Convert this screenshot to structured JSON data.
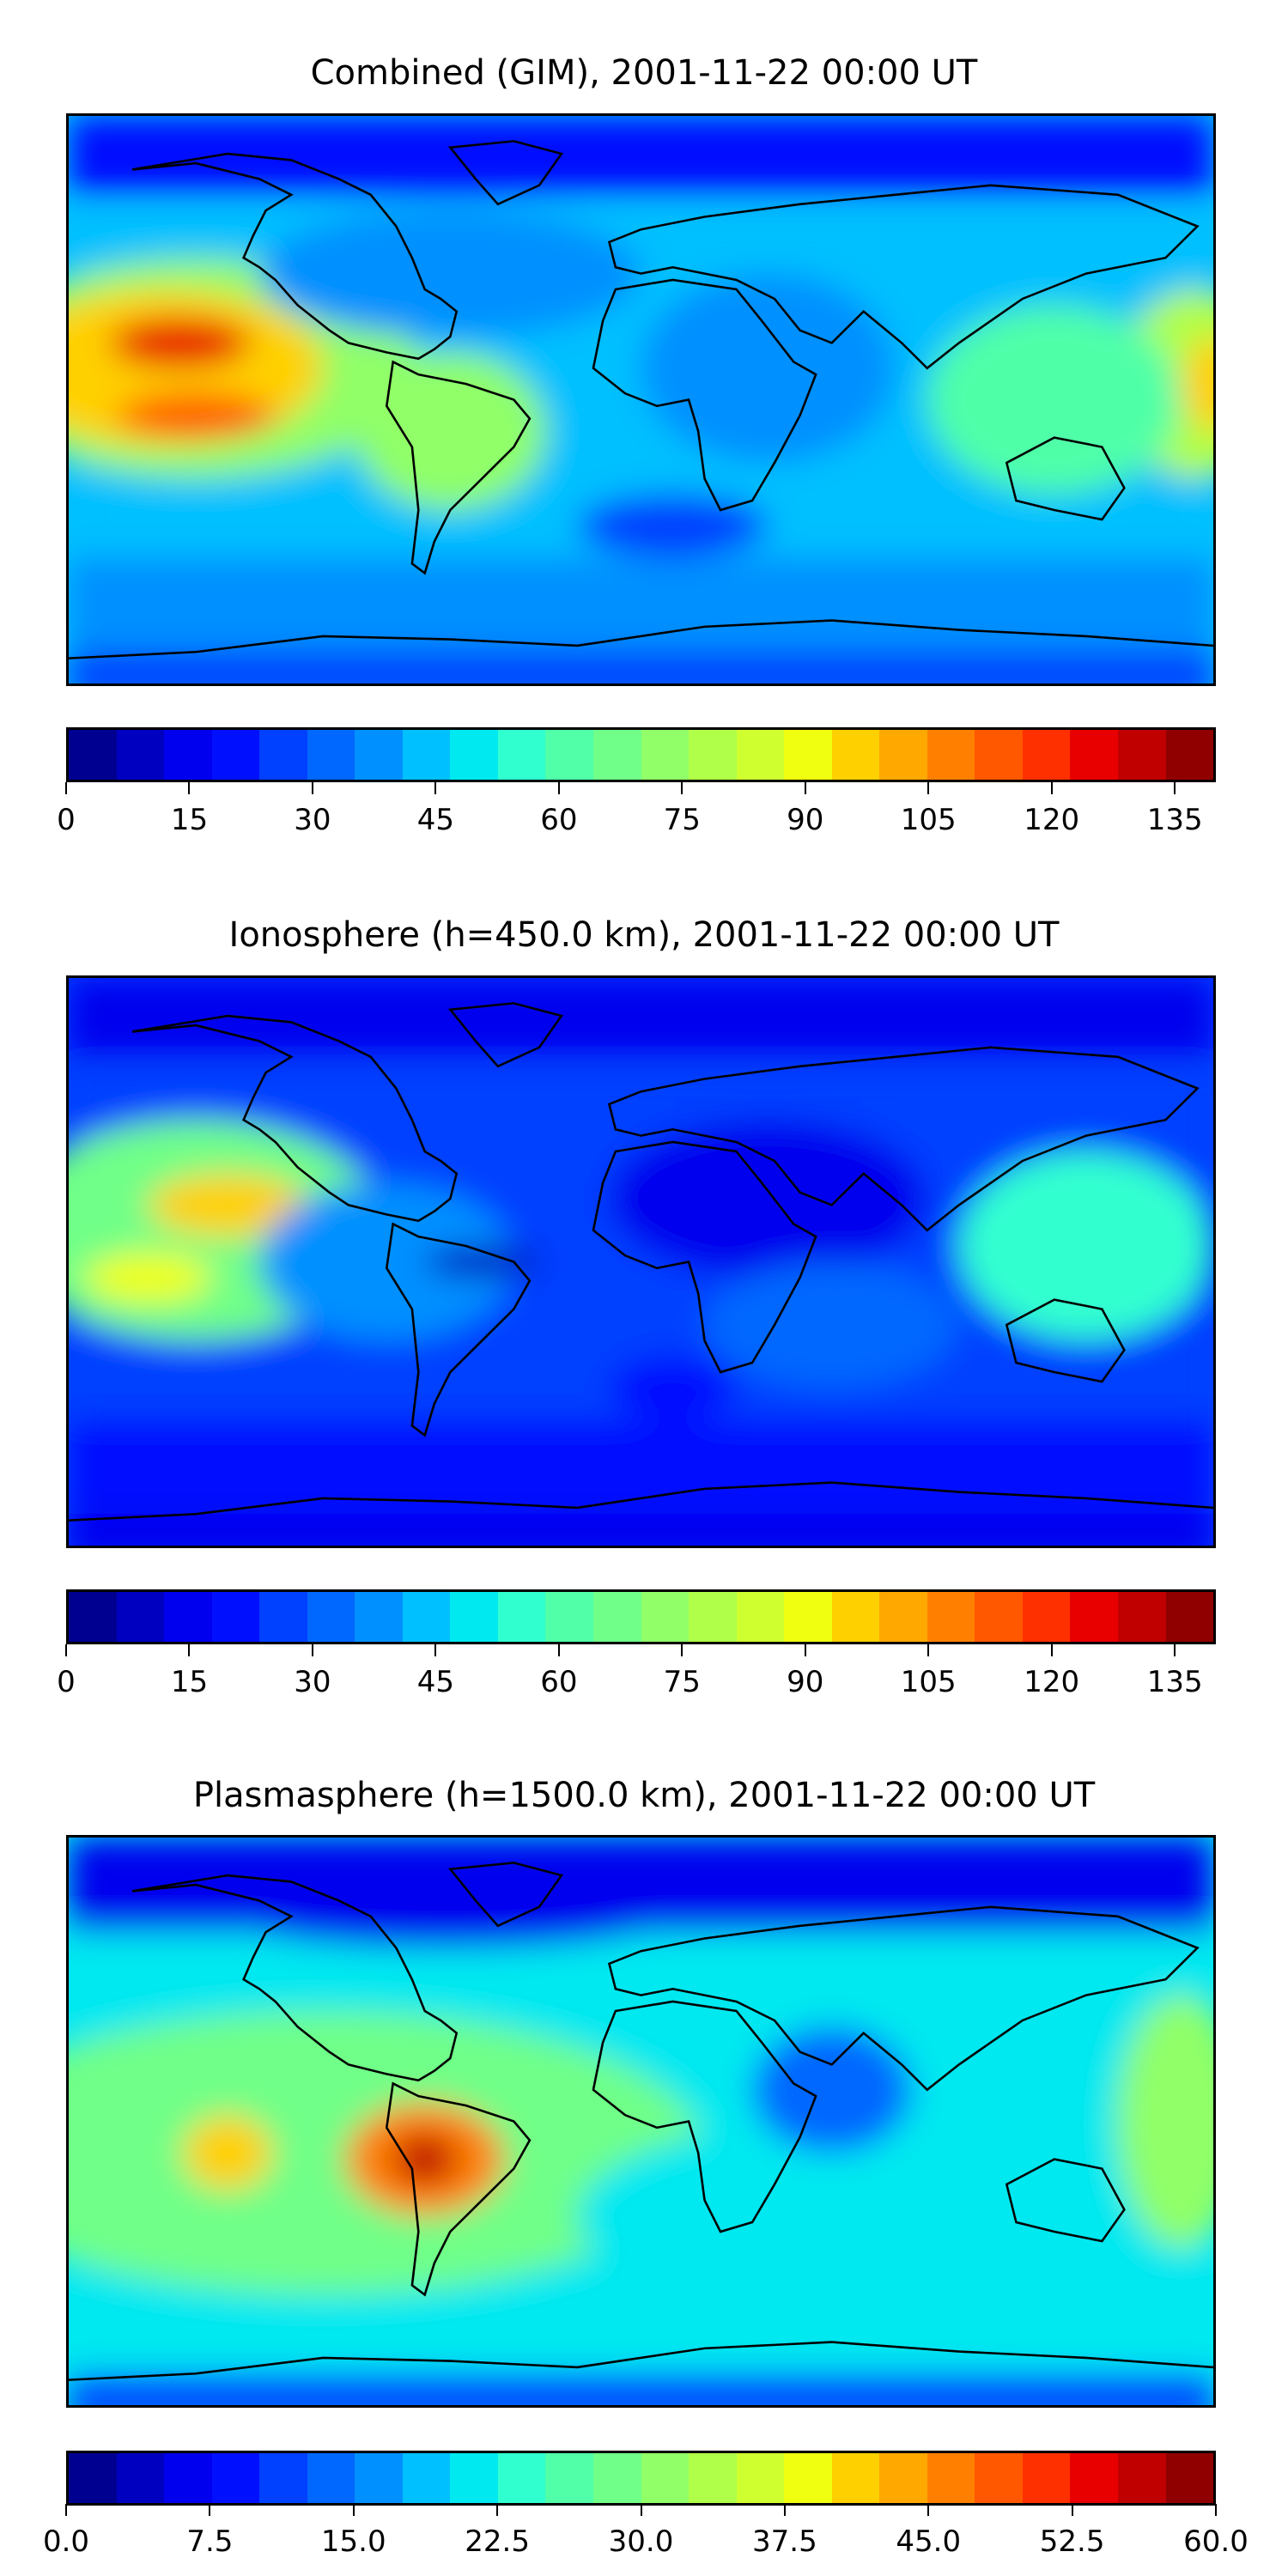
{
  "colors": [
    "#000090",
    "#0000c0",
    "#0000ee",
    "#0010ff",
    "#0040ff",
    "#0068ff",
    "#0090ff",
    "#00c0ff",
    "#00e8f0",
    "#30ffd0",
    "#50ffa8",
    "#70ff88",
    "#90ff68",
    "#b0ff48",
    "#d0ff30",
    "#f0ff10",
    "#ffd000",
    "#ffa800",
    "#ff8000",
    "#ff5800",
    "#ff3000",
    "#e80000",
    "#c00000",
    "#900000"
  ],
  "chart_data": [
    {
      "type": "heatmap",
      "title": "Combined (GIM), 2001-11-22 00:00 UT",
      "colorbar": {
        "range": [
          0,
          140
        ],
        "levels": 24,
        "ticks": [
          "0",
          "15",
          "30",
          "45",
          "60",
          "75",
          "90",
          "105",
          "120",
          "135"
        ],
        "tick_values": [
          0,
          15,
          30,
          45,
          60,
          75,
          90,
          105,
          120,
          135
        ]
      },
      "features": [
        {
          "name": "peak",
          "lon": -145,
          "lat": 18,
          "value": 125
        },
        {
          "name": "peak",
          "lon": -140,
          "lat": -5,
          "value": 115
        },
        {
          "name": "high",
          "lon": 175,
          "lat": 5,
          "value": 95
        },
        {
          "name": "low",
          "lon": 10,
          "lat": -40,
          "value": 20
        }
      ]
    },
    {
      "type": "heatmap",
      "title": "Ionosphere  (h=450.0 km), 2001-11-22 00:00 UT",
      "colorbar": {
        "range": [
          0,
          140
        ],
        "levels": 24,
        "ticks": [
          "0",
          "15",
          "30",
          "45",
          "60",
          "75",
          "90",
          "105",
          "120",
          "135"
        ],
        "tick_values": [
          0,
          15,
          30,
          45,
          60,
          75,
          90,
          105,
          120,
          135
        ]
      },
      "features": [
        {
          "name": "peak",
          "lon": -130,
          "lat": 18,
          "value": 100
        },
        {
          "name": "high",
          "lon": -155,
          "lat": -5,
          "value": 90
        },
        {
          "name": "low",
          "lon": 40,
          "lat": 20,
          "value": 8
        },
        {
          "name": "low",
          "lon": -50,
          "lat": 0,
          "value": 10
        }
      ]
    },
    {
      "type": "heatmap",
      "title": "Plasmasphere (h=1500.0 km), 2001-11-22 00:00 UT",
      "colorbar": {
        "range": [
          0,
          60
        ],
        "levels": 24,
        "ticks": [
          "0.0",
          "7.5",
          "15.0",
          "22.5",
          "30.0",
          "37.5",
          "45.0",
          "52.5",
          "60.0"
        ],
        "tick_values": [
          0,
          7.5,
          15,
          22.5,
          30,
          37.5,
          45,
          52.5,
          60
        ]
      },
      "features": [
        {
          "name": "peak",
          "lon": -68,
          "lat": -12,
          "value": 55
        },
        {
          "name": "high",
          "lon": -130,
          "lat": -10,
          "value": 45
        },
        {
          "name": "low",
          "lon": -60,
          "lat": 65,
          "value": 5
        }
      ]
    }
  ]
}
